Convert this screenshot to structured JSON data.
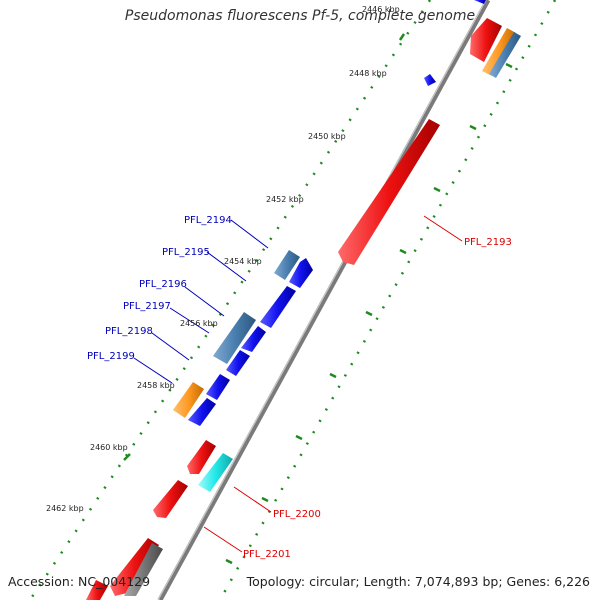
{
  "title": "Pseudomonas fluorescens Pf-5, complete genome",
  "footer": {
    "accession": "Accession: NC_004129",
    "summary": "Topology: circular; Length: 7,074,893 bp; Genes: 6,226"
  },
  "colors": {
    "forward_cds": "#ee1111",
    "reverse_cds": "#1111ee",
    "grey_feature": "#777777",
    "orange_feature": "#ff9922",
    "steelblue_feature": "#4a7fb0",
    "cyan_feature": "#22e8e8",
    "tick_major": "#1f8a1f",
    "backbone": "#888888",
    "label_forward": "#dd0000",
    "label_reverse": "#0000bb"
  },
  "kbp_labels": [
    "2446 kbp",
    "2448 kbp",
    "2450 kbp",
    "2452 kbp",
    "2454 kbp",
    "2456 kbp",
    "2458 kbp",
    "2460 kbp",
    "2462 kbp"
  ],
  "gene_labels": {
    "reverse": [
      "PFL_2194",
      "PFL_2195",
      "PFL_2196",
      "PFL_2197",
      "PFL_2198",
      "PFL_2199"
    ],
    "forward": [
      "PFL_2193",
      "PFL_2200",
      "PFL_2201"
    ]
  }
}
